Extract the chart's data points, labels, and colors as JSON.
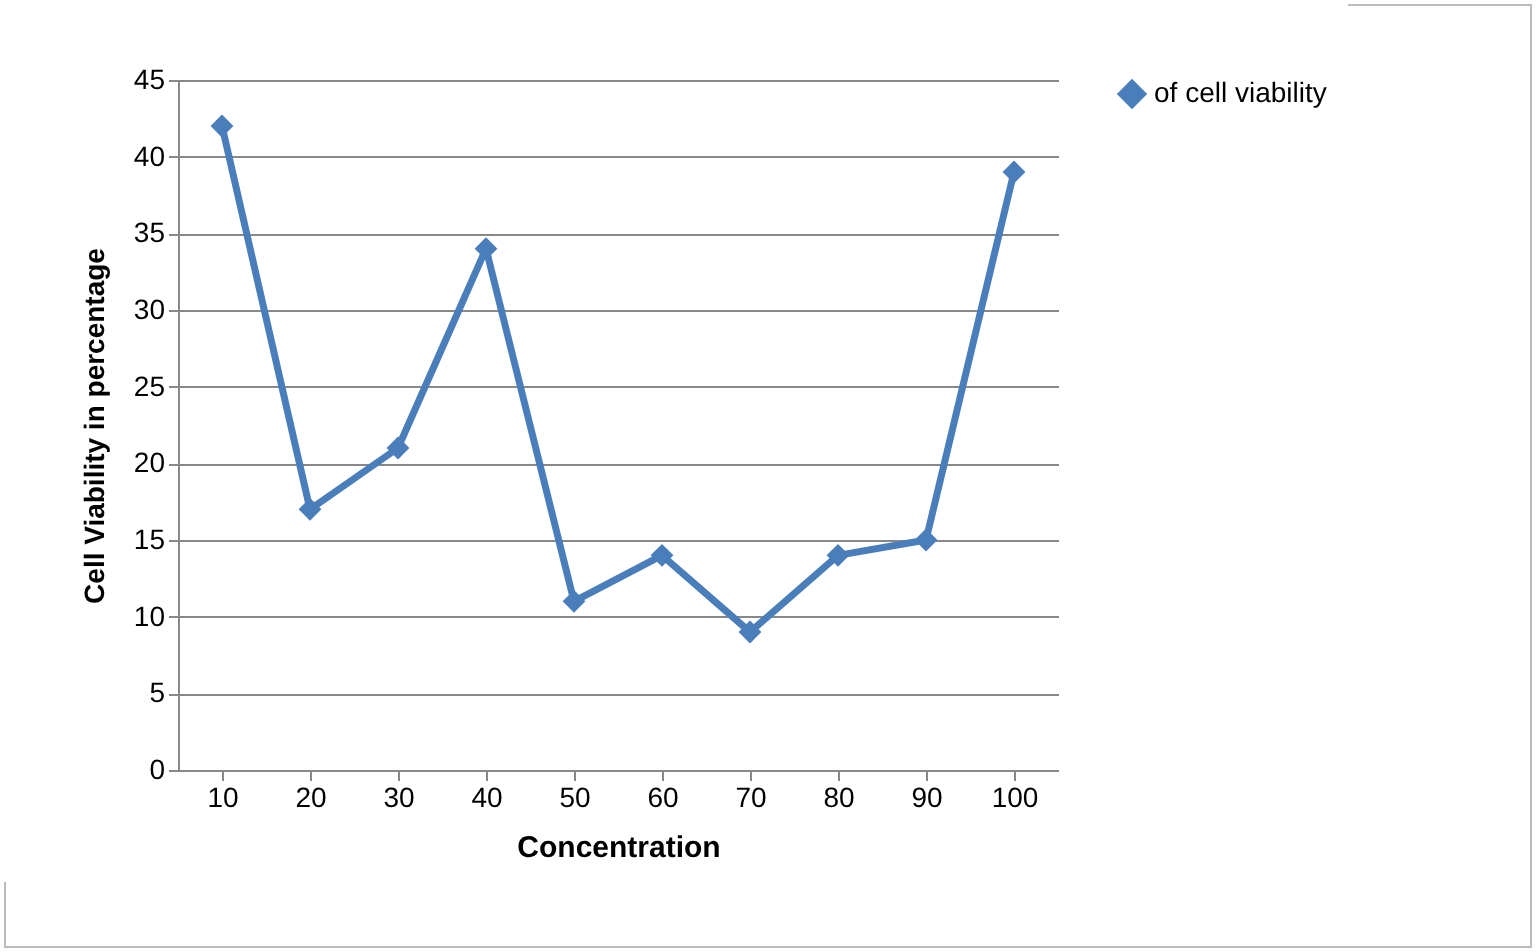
{
  "chart_data": {
    "type": "line",
    "xlabel": "Concentration",
    "ylabel": "Cell Viability  in percentage",
    "categories": [
      "10",
      "20",
      "30",
      "40",
      "50",
      "60",
      "70",
      "80",
      "90",
      "100"
    ],
    "series": [
      {
        "name": "of cell viability",
        "color": "#4a7ebb",
        "values": [
          42,
          17,
          21,
          34,
          11,
          14,
          9,
          14,
          15,
          39
        ]
      }
    ],
    "ylim": [
      0,
      45
    ],
    "yticks": [
      0,
      5,
      10,
      15,
      20,
      25,
      30,
      35,
      40,
      45
    ],
    "grid": "y",
    "legend": "right",
    "marker": "diamond",
    "line_style": "solid"
  }
}
